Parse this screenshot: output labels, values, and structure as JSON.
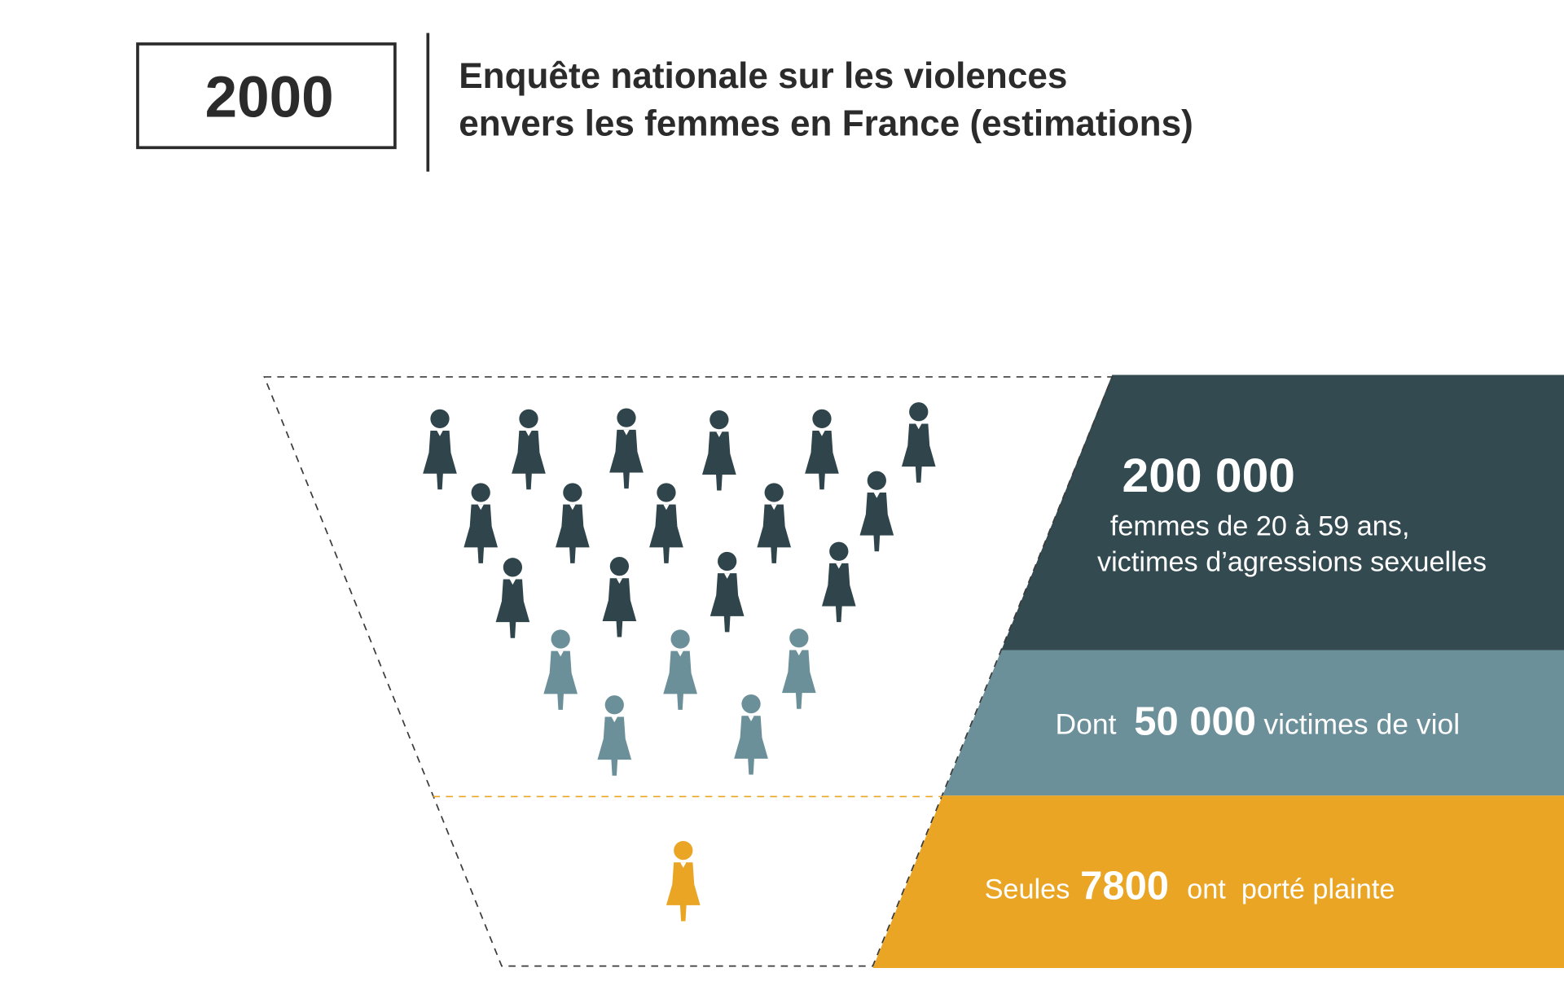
{
  "header": {
    "year": "2000",
    "title_lines": [
      "Enquête nationale sur les violences",
      "envers les femmes en France (estimations)"
    ]
  },
  "bands": [
    {
      "value": "200 000",
      "lines": [
        "femmes de 20 à 59 ans,",
        "victimes d’agressions sexuelles"
      ],
      "color": "#324a50"
    },
    {
      "prefix": "Dont",
      "value": "50 000",
      "suffix": "victimes de viol",
      "color": "#6c9099"
    },
    {
      "prefix": "Seules",
      "value": "7800",
      "suffix": "ont  porté plainte",
      "color": "#e9a523"
    }
  ],
  "pictogram": [
    {
      "icon": "woman-icon",
      "count": 15,
      "color": "#2f454b"
    },
    {
      "icon": "woman-icon",
      "count": 5,
      "color": "#6c9099"
    },
    {
      "icon": "woman-icon",
      "count": 1,
      "color": "#e9a523"
    }
  ]
}
